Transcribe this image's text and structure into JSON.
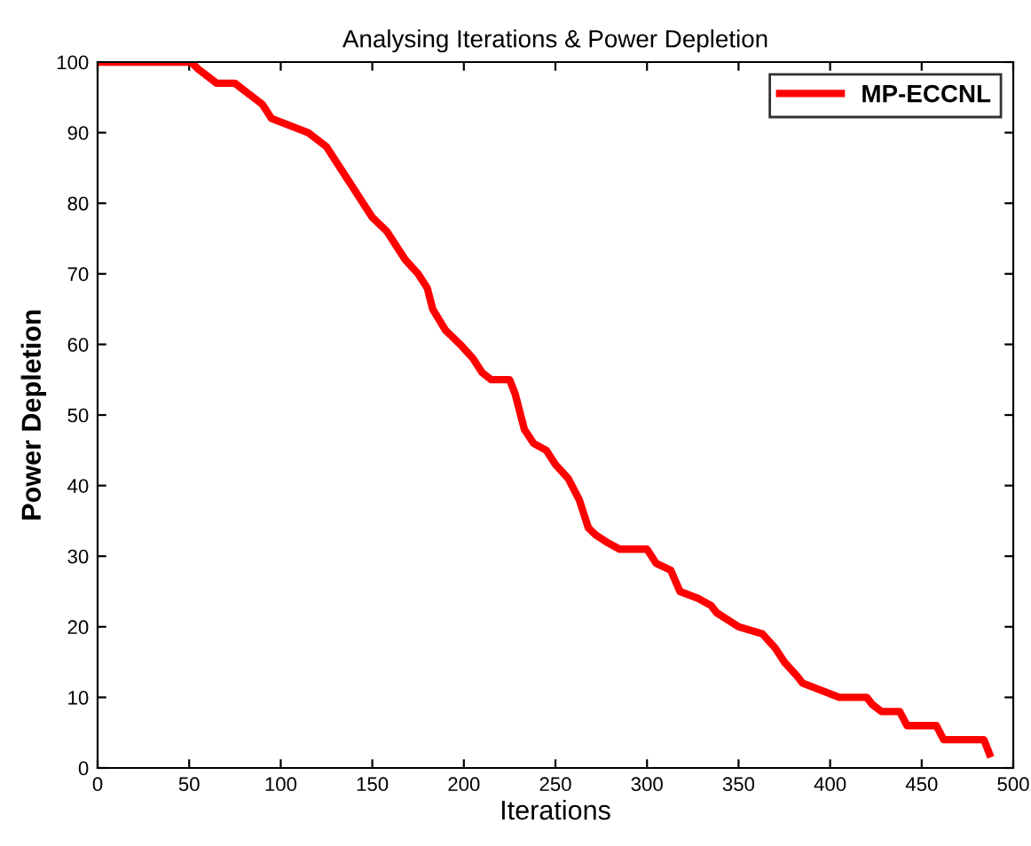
{
  "chart_data": {
    "type": "line",
    "title": "Analysing Iterations & Power Depletion",
    "xlabel": "Iterations",
    "ylabel": "Power Depletion",
    "xlim": [
      0,
      500
    ],
    "xticks": [
      0,
      50,
      100,
      150,
      200,
      250,
      300,
      350,
      400,
      450,
      500
    ],
    "ylim": [
      0,
      100
    ],
    "yticks": [
      0,
      10,
      20,
      30,
      40,
      50,
      60,
      70,
      80,
      90,
      100
    ],
    "grid": false,
    "legend": "top right",
    "line_style": "solid",
    "marker": "none",
    "series": [
      {
        "name": "MP-ECCNL",
        "color": "#ff0000",
        "x": [
          0,
          51,
          55,
          60,
          65,
          75,
          80,
          85,
          90,
          95,
          105,
          115,
          120,
          125,
          130,
          135,
          140,
          145,
          150,
          158,
          163,
          168,
          175,
          180,
          183,
          190,
          198,
          205,
          210,
          215,
          225,
          228,
          233,
          238,
          245,
          250,
          257,
          263,
          268,
          272,
          278,
          285,
          300,
          305,
          313,
          318,
          328,
          335,
          338,
          350,
          363,
          370,
          375,
          382,
          385,
          395,
          405,
          420,
          423,
          428,
          438,
          442,
          458,
          462,
          484,
          487
        ],
        "values": [
          100,
          100,
          99,
          98,
          97,
          97,
          96,
          95,
          94,
          92,
          91,
          90,
          89,
          88,
          86,
          84,
          82,
          80,
          78,
          76,
          74,
          72,
          70,
          68,
          65,
          62,
          60,
          58,
          56,
          55,
          55,
          53,
          48,
          46,
          45,
          43,
          41,
          38,
          34,
          33,
          32,
          31,
          31,
          29,
          28,
          25,
          24,
          23,
          22,
          20,
          19,
          17,
          15,
          13,
          12,
          11,
          10,
          10,
          9,
          8,
          8,
          6,
          6,
          4,
          4,
          2
        ]
      }
    ]
  }
}
